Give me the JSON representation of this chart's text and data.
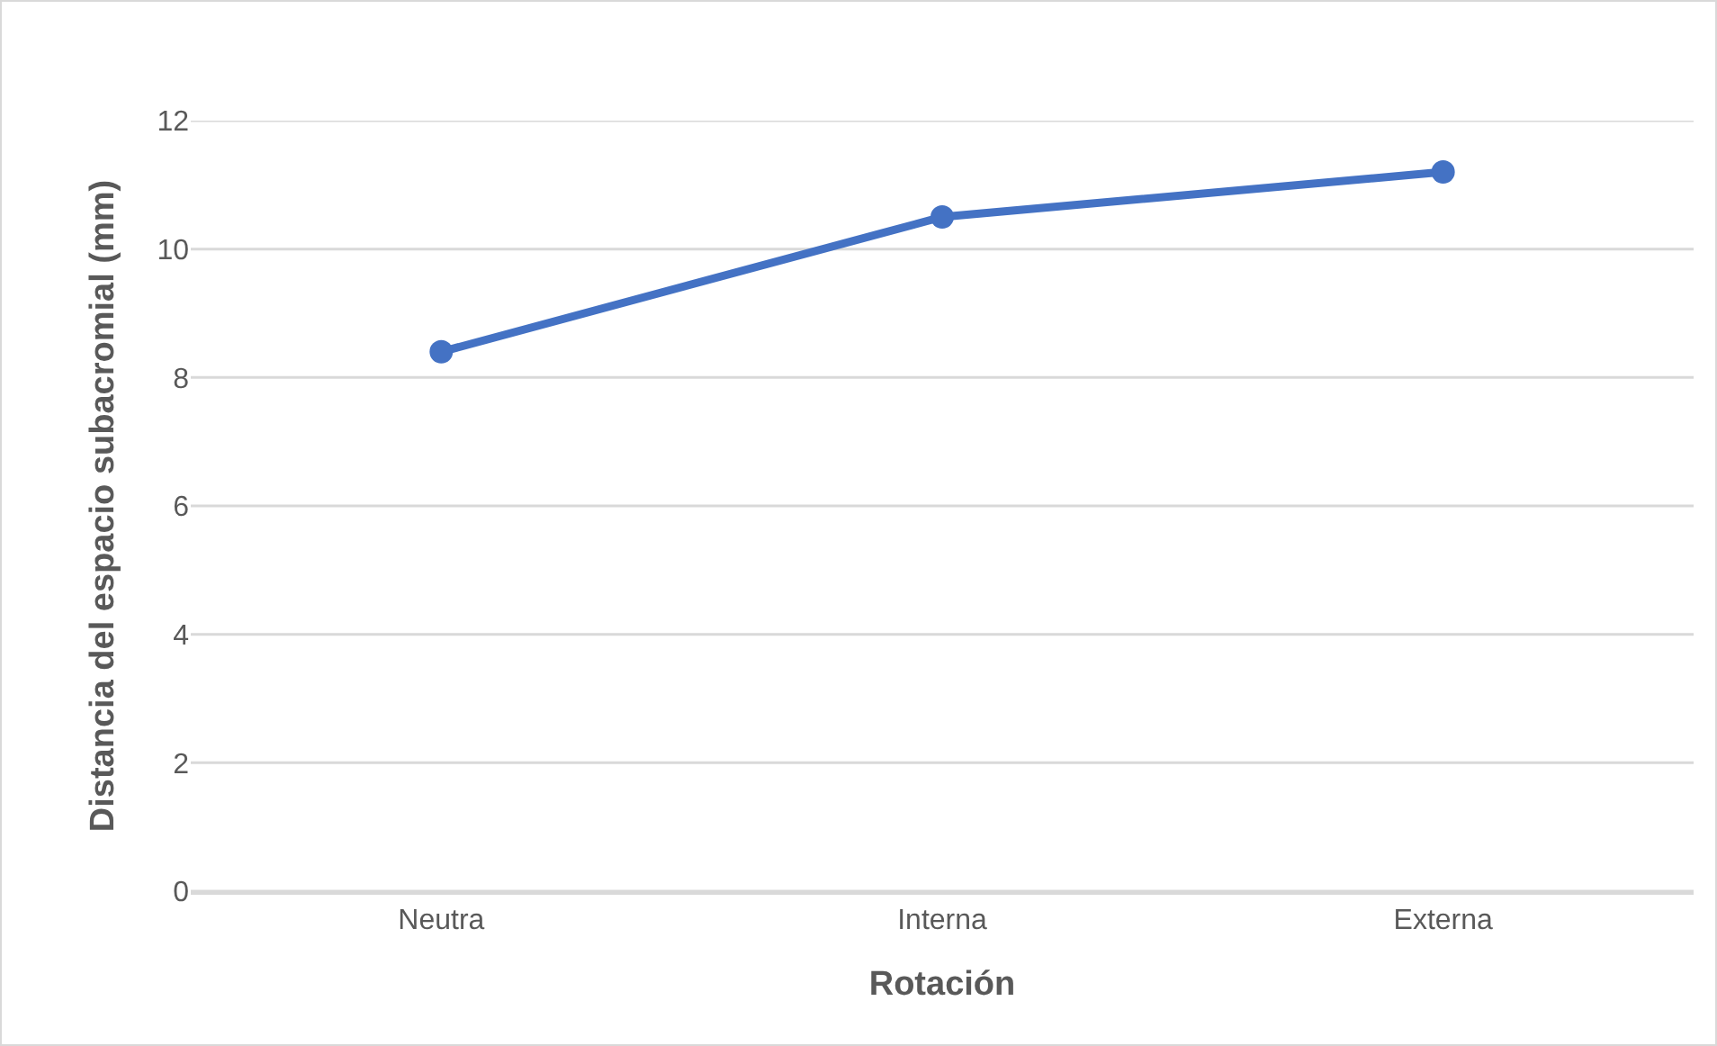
{
  "chart_data": {
    "type": "line",
    "xlabel": "Rotación",
    "ylabel": "Distancia del espacio subacromial (mm)",
    "categories": [
      "Neutra",
      "Interna",
      "Externa"
    ],
    "series": [
      {
        "color": "#4472c4",
        "values": [
          8.4,
          10.5,
          11.2
        ]
      }
    ],
    "ylim": [
      0,
      12
    ],
    "yticks": [
      0,
      2,
      4,
      6,
      8,
      10,
      12
    ],
    "grid": "y",
    "marker": "circle",
    "line_style": "solid"
  }
}
